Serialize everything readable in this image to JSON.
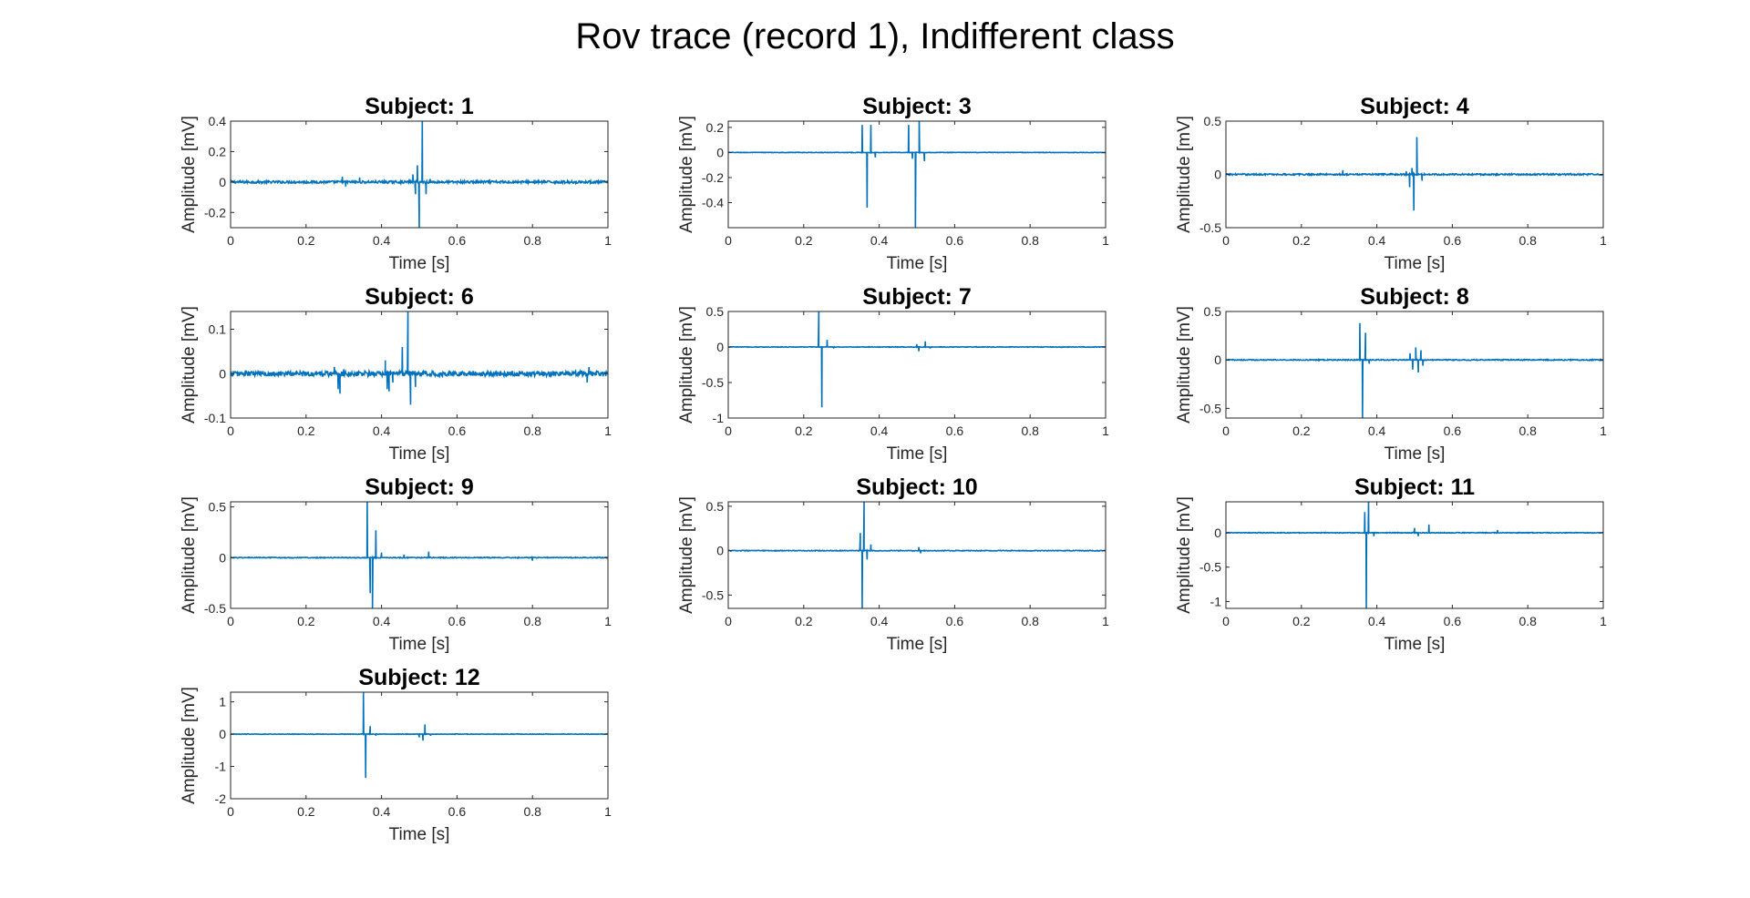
{
  "figure": {
    "title": "Rov trace (record 1), Indifferent class"
  },
  "style": {
    "line_color": "#0072BD",
    "axis_color": "#262626",
    "background": "#ffffff"
  },
  "chart_data": [
    {
      "type": "line",
      "title": "Subject: 1",
      "xlabel": "Time [s]",
      "ylabel": "Amplitude [mV]",
      "xlim": [
        0,
        1
      ],
      "ylim": [
        -0.3,
        0.4
      ],
      "xticks": [
        0,
        0.2,
        0.4,
        0.6,
        0.8,
        1
      ],
      "xticklabels": [
        "0",
        "0.2",
        "0.4",
        "0.6",
        "0.8",
        "1"
      ],
      "yticks": [
        -0.2,
        0,
        0.2,
        0.4
      ],
      "yticklabels": [
        "-0.2",
        "0",
        "0.2",
        "0.4"
      ],
      "noise": 0.008,
      "events": [
        {
          "x": 0.296,
          "y": 0.035
        },
        {
          "x": 0.305,
          "y": -0.03
        },
        {
          "x": 0.342,
          "y": 0.03
        },
        {
          "x": 0.483,
          "y": 0.05
        },
        {
          "x": 0.49,
          "y": -0.08
        },
        {
          "x": 0.495,
          "y": 0.11
        },
        {
          "x": 0.5,
          "y": -0.3
        },
        {
          "x": 0.508,
          "y": 0.4
        },
        {
          "x": 0.518,
          "y": -0.08
        }
      ]
    },
    {
      "type": "line",
      "title": "Subject: 3",
      "xlabel": "Time [s]",
      "ylabel": "Amplitude [mV]",
      "xlim": [
        0,
        1
      ],
      "ylim": [
        -0.6,
        0.25
      ],
      "xticks": [
        0,
        0.2,
        0.4,
        0.6,
        0.8,
        1
      ],
      "xticklabels": [
        "0",
        "0.2",
        "0.4",
        "0.6",
        "0.8",
        "1"
      ],
      "yticks": [
        -0.4,
        -0.2,
        0,
        0.2
      ],
      "yticklabels": [
        "-0.4",
        "-0.2",
        "0",
        "0.2"
      ],
      "noise": 0.002,
      "events": [
        {
          "x": 0.355,
          "y": 0.22
        },
        {
          "x": 0.368,
          "y": -0.44
        },
        {
          "x": 0.378,
          "y": 0.22
        },
        {
          "x": 0.39,
          "y": -0.04
        },
        {
          "x": 0.478,
          "y": 0.22
        },
        {
          "x": 0.488,
          "y": -0.05
        },
        {
          "x": 0.496,
          "y": -0.6
        },
        {
          "x": 0.506,
          "y": 0.25
        },
        {
          "x": 0.52,
          "y": -0.07
        }
      ]
    },
    {
      "type": "line",
      "title": "Subject: 4",
      "xlabel": "Time [s]",
      "ylabel": "Amplitude [mV]",
      "xlim": [
        0,
        1
      ],
      "ylim": [
        -0.5,
        0.5
      ],
      "xticks": [
        0,
        0.2,
        0.4,
        0.6,
        0.8,
        1
      ],
      "xticklabels": [
        "0",
        "0.2",
        "0.4",
        "0.6",
        "0.8",
        "1"
      ],
      "yticks": [
        -0.5,
        0,
        0.5
      ],
      "yticklabels": [
        "-0.5",
        "0",
        "0.5"
      ],
      "noise": 0.007,
      "events": [
        {
          "x": 0.31,
          "y": 0.04
        },
        {
          "x": 0.478,
          "y": 0.03
        },
        {
          "x": 0.487,
          "y": -0.12
        },
        {
          "x": 0.493,
          "y": 0.06
        },
        {
          "x": 0.498,
          "y": -0.34
        },
        {
          "x": 0.506,
          "y": 0.35
        },
        {
          "x": 0.52,
          "y": -0.06
        }
      ]
    },
    {
      "type": "line",
      "title": "Subject: 6",
      "xlabel": "Time [s]",
      "ylabel": "Amplitude [mV]",
      "xlim": [
        0,
        1
      ],
      "ylim": [
        -0.1,
        0.14
      ],
      "xticks": [
        0,
        0.2,
        0.4,
        0.6,
        0.8,
        1
      ],
      "xticklabels": [
        "0",
        "0.2",
        "0.4",
        "0.6",
        "0.8",
        "1"
      ],
      "yticks": [
        -0.1,
        0,
        0.1
      ],
      "yticklabels": [
        "-0.1",
        "0",
        "0.1"
      ],
      "noise": 0.006,
      "events": [
        {
          "x": 0.275,
          "y": 0.015
        },
        {
          "x": 0.285,
          "y": -0.035
        },
        {
          "x": 0.29,
          "y": -0.045
        },
        {
          "x": 0.3,
          "y": 0.01
        },
        {
          "x": 0.41,
          "y": 0.015
        },
        {
          "x": 0.415,
          "y": -0.035
        },
        {
          "x": 0.42,
          "y": -0.04
        },
        {
          "x": 0.41,
          "y": 0.02
        },
        {
          "x": 0.415,
          "y": -0.035
        },
        {
          "x": 0.415,
          "y": -0.02
        },
        {
          "x": 0.41,
          "y": 0.03
        },
        {
          "x": 0.43,
          "y": -0.02
        },
        {
          "x": 0.455,
          "y": 0.06
        },
        {
          "x": 0.47,
          "y": 0.14
        },
        {
          "x": 0.477,
          "y": -0.07
        },
        {
          "x": 0.49,
          "y": -0.03
        },
        {
          "x": 0.95,
          "y": 0.015
        },
        {
          "x": 0.945,
          "y": -0.02
        }
      ]
    },
    {
      "type": "line",
      "title": "Subject: 7",
      "xlabel": "Time [s]",
      "ylabel": "Amplitude [mV]",
      "xlim": [
        0,
        1
      ],
      "ylim": [
        -1,
        0.5
      ],
      "xticks": [
        0,
        0.2,
        0.4,
        0.6,
        0.8,
        1
      ],
      "xticklabels": [
        "0",
        "0.2",
        "0.4",
        "0.6",
        "0.8",
        "1"
      ],
      "yticks": [
        -1,
        -0.5,
        0,
        0.5
      ],
      "yticklabels": [
        "-1",
        "-0.5",
        "0",
        "0.5"
      ],
      "noise": 0.004,
      "events": [
        {
          "x": 0.24,
          "y": 0.5
        },
        {
          "x": 0.248,
          "y": -0.85
        },
        {
          "x": 0.262,
          "y": 0.1
        },
        {
          "x": 0.28,
          "y": -0.02
        },
        {
          "x": 0.5,
          "y": 0.04
        },
        {
          "x": 0.505,
          "y": -0.06
        },
        {
          "x": 0.522,
          "y": 0.08
        },
        {
          "x": 0.535,
          "y": -0.02
        }
      ]
    },
    {
      "type": "line",
      "title": "Subject: 8",
      "xlabel": "Time [s]",
      "ylabel": "Amplitude [mV]",
      "xlim": [
        0,
        1
      ],
      "ylim": [
        -0.6,
        0.5
      ],
      "xticks": [
        0,
        0.2,
        0.4,
        0.6,
        0.8,
        1
      ],
      "xticklabels": [
        "0",
        "0.2",
        "0.4",
        "0.6",
        "0.8",
        "1"
      ],
      "yticks": [
        -0.5,
        0,
        0.5
      ],
      "yticklabels": [
        "-0.5",
        "0",
        "0.5"
      ],
      "noise": 0.005,
      "events": [
        {
          "x": 0.355,
          "y": 0.38
        },
        {
          "x": 0.362,
          "y": -0.6
        },
        {
          "x": 0.37,
          "y": 0.28
        },
        {
          "x": 0.38,
          "y": -0.04
        },
        {
          "x": 0.488,
          "y": 0.07
        },
        {
          "x": 0.495,
          "y": -0.1
        },
        {
          "x": 0.503,
          "y": 0.13
        },
        {
          "x": 0.51,
          "y": -0.13
        },
        {
          "x": 0.517,
          "y": 0.1
        },
        {
          "x": 0.522,
          "y": -0.06
        }
      ]
    },
    {
      "type": "line",
      "title": "Subject: 9",
      "xlabel": "Time [s]",
      "ylabel": "Amplitude [mV]",
      "xlim": [
        0,
        1
      ],
      "ylim": [
        -0.5,
        0.55
      ],
      "xticks": [
        0,
        0.2,
        0.4,
        0.6,
        0.8,
        1
      ],
      "xticklabels": [
        "0",
        "0.2",
        "0.4",
        "0.6",
        "0.8",
        "1"
      ],
      "yticks": [
        -0.5,
        0,
        0.5
      ],
      "yticklabels": [
        "-0.5",
        "0",
        "0.5"
      ],
      "noise": 0.004,
      "events": [
        {
          "x": 0.362,
          "y": 0.55
        },
        {
          "x": 0.37,
          "y": -0.35
        },
        {
          "x": 0.376,
          "y": -0.5
        },
        {
          "x": 0.385,
          "y": 0.27
        },
        {
          "x": 0.4,
          "y": 0.05
        },
        {
          "x": 0.46,
          "y": 0.03
        },
        {
          "x": 0.525,
          "y": 0.06
        },
        {
          "x": 0.8,
          "y": -0.03
        }
      ]
    },
    {
      "type": "line",
      "title": "Subject: 10",
      "xlabel": "Time [s]",
      "ylabel": "Amplitude [mV]",
      "xlim": [
        0,
        1
      ],
      "ylim": [
        -0.65,
        0.55
      ],
      "xticks": [
        0,
        0.2,
        0.4,
        0.6,
        0.8,
        1
      ],
      "xticklabels": [
        "0",
        "0.2",
        "0.4",
        "0.6",
        "0.8",
        "1"
      ],
      "yticks": [
        -0.5,
        0,
        0.5
      ],
      "yticklabels": [
        "-0.5",
        "0",
        "0.5"
      ],
      "noise": 0.004,
      "events": [
        {
          "x": 0.35,
          "y": 0.2
        },
        {
          "x": 0.355,
          "y": -0.65
        },
        {
          "x": 0.36,
          "y": 0.55
        },
        {
          "x": 0.368,
          "y": -0.1
        },
        {
          "x": 0.378,
          "y": 0.07
        },
        {
          "x": 0.505,
          "y": 0.04
        },
        {
          "x": 0.51,
          "y": -0.03
        }
      ]
    },
    {
      "type": "line",
      "title": "Subject: 11",
      "xlabel": "Time [s]",
      "ylabel": "Amplitude [mV]",
      "xlim": [
        0,
        1
      ],
      "ylim": [
        -1.1,
        0.45
      ],
      "xticks": [
        0,
        0.2,
        0.4,
        0.6,
        0.8,
        1
      ],
      "xticklabels": [
        "0",
        "0.2",
        "0.4",
        "0.6",
        "0.8",
        "1"
      ],
      "yticks": [
        -1,
        -0.5,
        0
      ],
      "yticklabels": [
        "-1",
        "-0.5",
        "0"
      ],
      "noise": 0.005,
      "events": [
        {
          "x": 0.368,
          "y": 0.3
        },
        {
          "x": 0.372,
          "y": -1.1
        },
        {
          "x": 0.378,
          "y": 0.45
        },
        {
          "x": 0.392,
          "y": -0.05
        },
        {
          "x": 0.5,
          "y": 0.07
        },
        {
          "x": 0.51,
          "y": -0.05
        },
        {
          "x": 0.538,
          "y": 0.12
        },
        {
          "x": 0.72,
          "y": 0.04
        }
      ]
    },
    {
      "type": "line",
      "title": "Subject: 12",
      "xlabel": "Time [s]",
      "ylabel": "Amplitude [mV]",
      "xlim": [
        0,
        1
      ],
      "ylim": [
        -2,
        1.3
      ],
      "xticks": [
        0,
        0.2,
        0.4,
        0.6,
        0.8,
        1
      ],
      "xticklabels": [
        "0",
        "0.2",
        "0.4",
        "0.6",
        "0.8",
        "1"
      ],
      "yticks": [
        -2,
        -1,
        0,
        1
      ],
      "yticklabels": [
        "-2",
        "-1",
        "0",
        "1"
      ],
      "noise": 0.008,
      "events": [
        {
          "x": 0.352,
          "y": 1.3
        },
        {
          "x": 0.358,
          "y": -1.35
        },
        {
          "x": 0.37,
          "y": 0.25
        },
        {
          "x": 0.385,
          "y": -0.05
        },
        {
          "x": 0.5,
          "y": -0.1
        },
        {
          "x": 0.51,
          "y": -0.2
        },
        {
          "x": 0.515,
          "y": 0.3
        },
        {
          "x": 0.53,
          "y": -0.05
        }
      ]
    }
  ]
}
